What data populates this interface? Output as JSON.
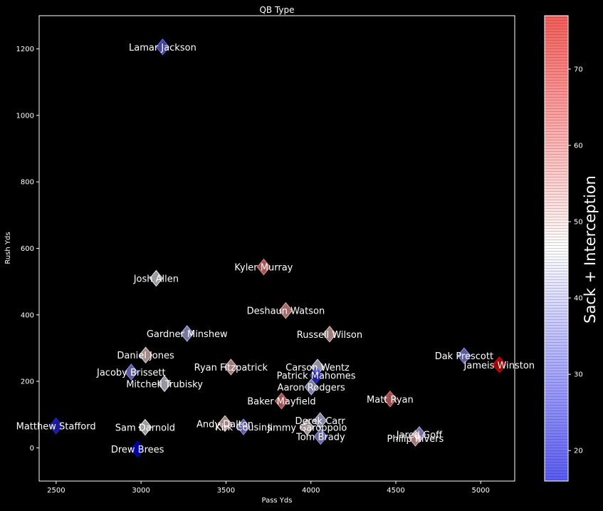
{
  "chart_data": {
    "type": "scatter",
    "title": "QB Type",
    "xlabel": "Pass Yds",
    "ylabel": "Rush Yds",
    "xlim": [
      2400,
      5200
    ],
    "ylim": [
      -100,
      1300
    ],
    "xticks": [
      2500,
      3000,
      3500,
      4000,
      4500,
      5000
    ],
    "yticks": [
      0,
      200,
      400,
      600,
      800,
      1000,
      1200
    ],
    "grid": false,
    "marker": "diamond",
    "colorbar": {
      "label": "Sack + Interception",
      "range": [
        16,
        77
      ],
      "ticks": [
        20,
        30,
        40,
        50,
        60,
        70
      ],
      "colormap": [
        "#0000ff",
        "#ffffff",
        "#ff0000"
      ]
    },
    "points": [
      {
        "name": "Lamar Jackson",
        "x": 3127,
        "y": 1206,
        "c": 29
      },
      {
        "name": "Kyler Murray",
        "x": 3722,
        "y": 544,
        "c": 60
      },
      {
        "name": "Josh Allen",
        "x": 3089,
        "y": 510,
        "c": 46
      },
      {
        "name": "Deshaun Watson",
        "x": 3852,
        "y": 413,
        "c": 56
      },
      {
        "name": "Russell Wilson",
        "x": 4110,
        "y": 342,
        "c": 53
      },
      {
        "name": "Gardner Minshew",
        "x": 3271,
        "y": 344,
        "c": 39
      },
      {
        "name": "Dak Prescott",
        "x": 4902,
        "y": 277,
        "c": 34
      },
      {
        "name": "Jameis Winston",
        "x": 5109,
        "y": 250,
        "c": 77
      },
      {
        "name": "Daniel Jones",
        "x": 3027,
        "y": 279,
        "c": 50
      },
      {
        "name": "Ryan Fitzpatrick",
        "x": 3529,
        "y": 243,
        "c": 53
      },
      {
        "name": "Carson Wentz",
        "x": 4039,
        "y": 243,
        "c": 44
      },
      {
        "name": "Jacoby Brissett",
        "x": 2942,
        "y": 228,
        "c": 34
      },
      {
        "name": "Patrick Mahomes",
        "x": 4031,
        "y": 218,
        "c": 22
      },
      {
        "name": "Mitchell Trubisky",
        "x": 3138,
        "y": 193,
        "c": 45
      },
      {
        "name": "Aaron Rodgers",
        "x": 4002,
        "y": 183,
        "c": 40
      },
      {
        "name": "Baker Mayfield",
        "x": 3827,
        "y": 141,
        "c": 61
      },
      {
        "name": "Matt Ryan",
        "x": 4466,
        "y": 147,
        "c": 62
      },
      {
        "name": "Matthew Stafford",
        "x": 2499,
        "y": 66,
        "c": 21
      },
      {
        "name": "Sam Darnold",
        "x": 3024,
        "y": 62,
        "c": 46
      },
      {
        "name": "Andy Dalton",
        "x": 3494,
        "y": 73,
        "c": 51
      },
      {
        "name": "Kirk Cousins",
        "x": 3603,
        "y": 63,
        "c": 34
      },
      {
        "name": "Derek Carr",
        "x": 4054,
        "y": 82,
        "c": 42
      },
      {
        "name": "Jimmy Garoppolo",
        "x": 3978,
        "y": 62,
        "c": 49
      },
      {
        "name": "Tom Brady",
        "x": 4057,
        "y": 34,
        "c": 35
      },
      {
        "name": "Jared Goff",
        "x": 4638,
        "y": 40,
        "c": 38
      },
      {
        "name": "Philip Rivers",
        "x": 4615,
        "y": 29,
        "c": 54
      },
      {
        "name": "Drew Brees",
        "x": 2979,
        "y": -4,
        "c": 16
      }
    ]
  }
}
